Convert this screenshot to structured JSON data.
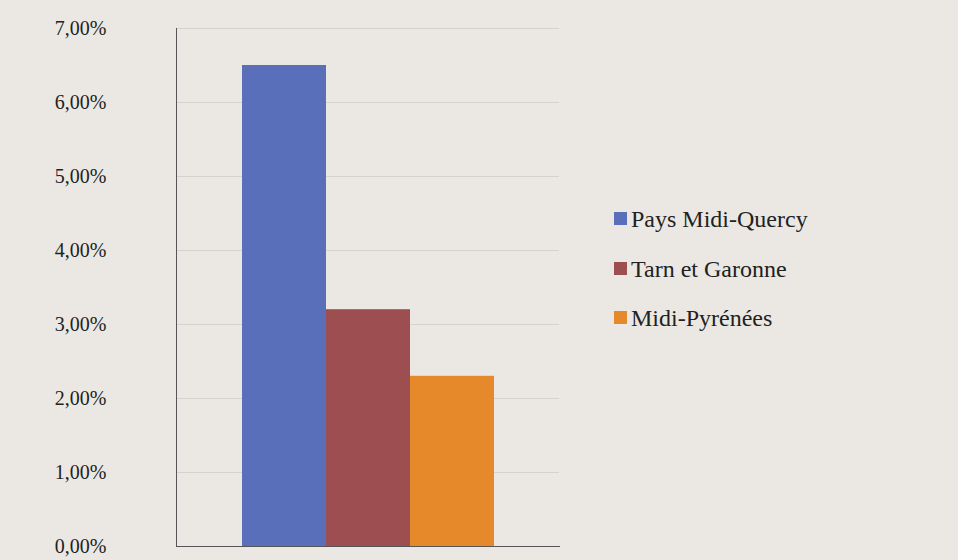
{
  "chart_data": {
    "type": "bar",
    "categories": [
      null
    ],
    "series": [
      {
        "name": "Pays Midi-Quercy",
        "color": "#5a6fb9",
        "values": [
          6.5
        ]
      },
      {
        "name": "Tarn et Garonne",
        "color": "#9c4e51",
        "values": [
          3.2
        ]
      },
      {
        "name": "Midi-Pyrénées",
        "color": "#e5892a",
        "values": [
          2.3
        ]
      }
    ],
    "ylim": [
      0,
      7
    ],
    "yticks": [
      {
        "value": 0,
        "label": "0,00%"
      },
      {
        "value": 1,
        "label": "1,00%"
      },
      {
        "value": 2,
        "label": "2,00%"
      },
      {
        "value": 3,
        "label": "3,00%"
      },
      {
        "value": 4,
        "label": "4,00%"
      },
      {
        "value": 5,
        "label": "5,00%"
      },
      {
        "value": 6,
        "label": "6,00%"
      },
      {
        "value": 7,
        "label": "7,00%"
      }
    ],
    "grid": true,
    "legend": "right"
  }
}
